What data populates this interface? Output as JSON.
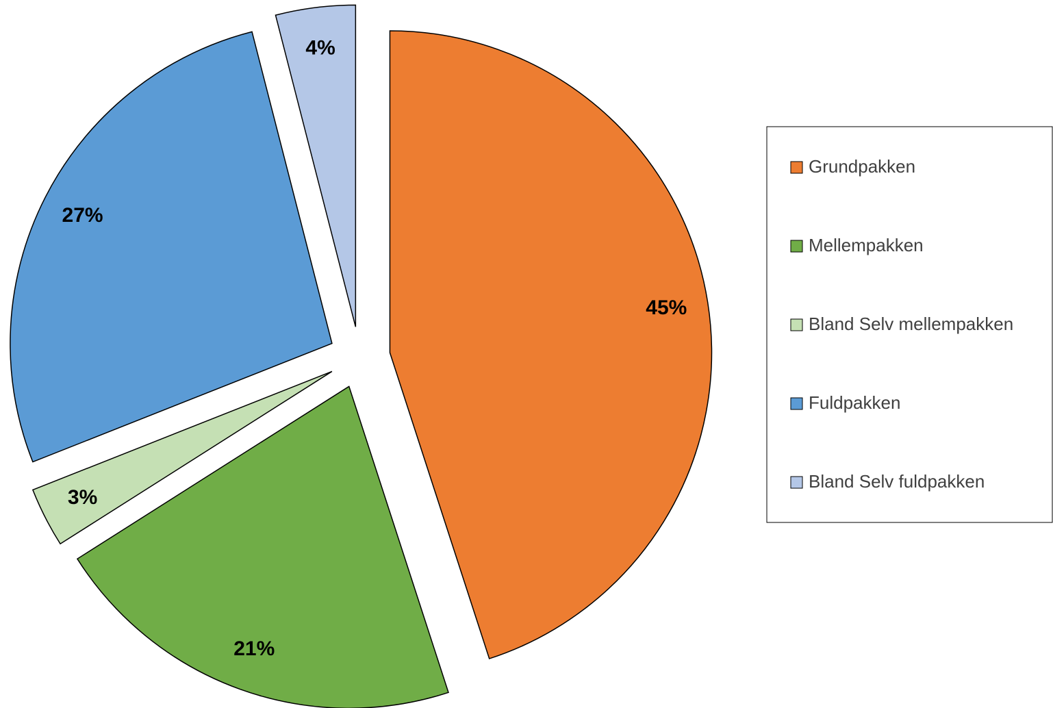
{
  "chart_data": {
    "type": "pie",
    "categories": [
      "Grundpakken",
      "Mellempakken",
      "Bland Selv mellempakken",
      "Fuldpakken",
      "Bland Selv fuldpakken"
    ],
    "values": [
      45,
      21,
      3,
      27,
      4
    ],
    "value_labels": [
      "45%",
      "21%",
      "3%",
      "27%",
      "4%"
    ],
    "colors": [
      "#ed7d31",
      "#70ad47",
      "#c5e0b4",
      "#5b9bd5",
      "#b4c7e7"
    ],
    "legend": "right"
  }
}
